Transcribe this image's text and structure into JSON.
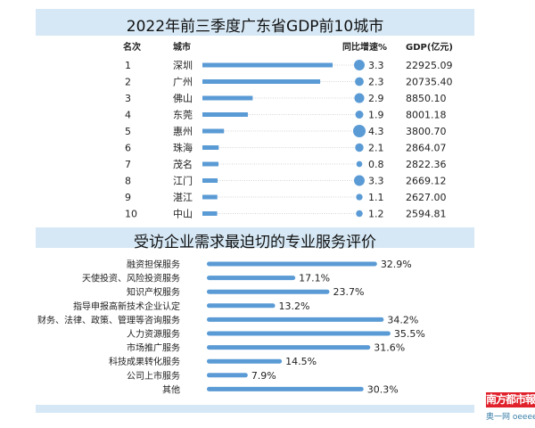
{
  "chart_data": [
    {
      "type": "bar",
      "title": "2022年前三季度广东省GDP前10城市",
      "columns": [
        "名次",
        "城市",
        "同比增速%",
        "GDP(亿元)"
      ],
      "ranks": [
        "1",
        "2",
        "3",
        "4",
        "5",
        "6",
        "7",
        "8",
        "9",
        "10"
      ],
      "categories": [
        "深圳",
        "广州",
        "佛山",
        "东莞",
        "惠州",
        "珠海",
        "茂名",
        "江门",
        "湛江",
        "中山"
      ],
      "gdp": [
        22925.09,
        20735.4,
        8850.1,
        8001.18,
        3800.7,
        2864.07,
        2822.36,
        2669.12,
        2627.0,
        2594.81
      ],
      "gdp_labels": [
        "22925.09",
        "20735.40",
        "8850.10",
        "8001.18",
        "3800.70",
        "2864.07",
        "2822.36",
        "2669.12",
        "2627.00",
        "2594.81"
      ],
      "growth": [
        3.3,
        2.3,
        2.9,
        1.9,
        4.3,
        2.1,
        0.8,
        3.3,
        1.1,
        1.2
      ],
      "growth_labels": [
        "3.3",
        "2.3",
        "2.9",
        "1.9",
        "4.3",
        "2.1",
        "0.8",
        "3.3",
        "1.1",
        "1.2"
      ],
      "color": "#5b9bd5"
    },
    {
      "type": "bar",
      "orientation": "horizontal",
      "title": "受访企业需求最迫切的专业服务评价",
      "categories": [
        "融资担保服务",
        "天使投资、风险投资服务",
        "知识产权服务",
        "指导申报高新技术企业认定",
        "财务、法律、政策、管理等咨询服务",
        "人力资源服务",
        "市场推广服务",
        "科技成果转化服务",
        "公司上市服务",
        "其他"
      ],
      "values": [
        32.9,
        17.1,
        23.7,
        13.2,
        34.2,
        35.5,
        31.6,
        14.5,
        7.9,
        30.3
      ],
      "value_labels": [
        "32.9%",
        "17.1%",
        "23.7%",
        "13.2%",
        "34.2%",
        "35.5%",
        "31.6%",
        "14.5%",
        "7.9%",
        "30.3%"
      ],
      "color": "#5b9bd5"
    }
  ],
  "colors": {
    "band": "#d6e8f5",
    "logo_bg": "#e0202a"
  },
  "logo": {
    "name": "南方都市報",
    "site": "奥一网 oeeee.com"
  }
}
